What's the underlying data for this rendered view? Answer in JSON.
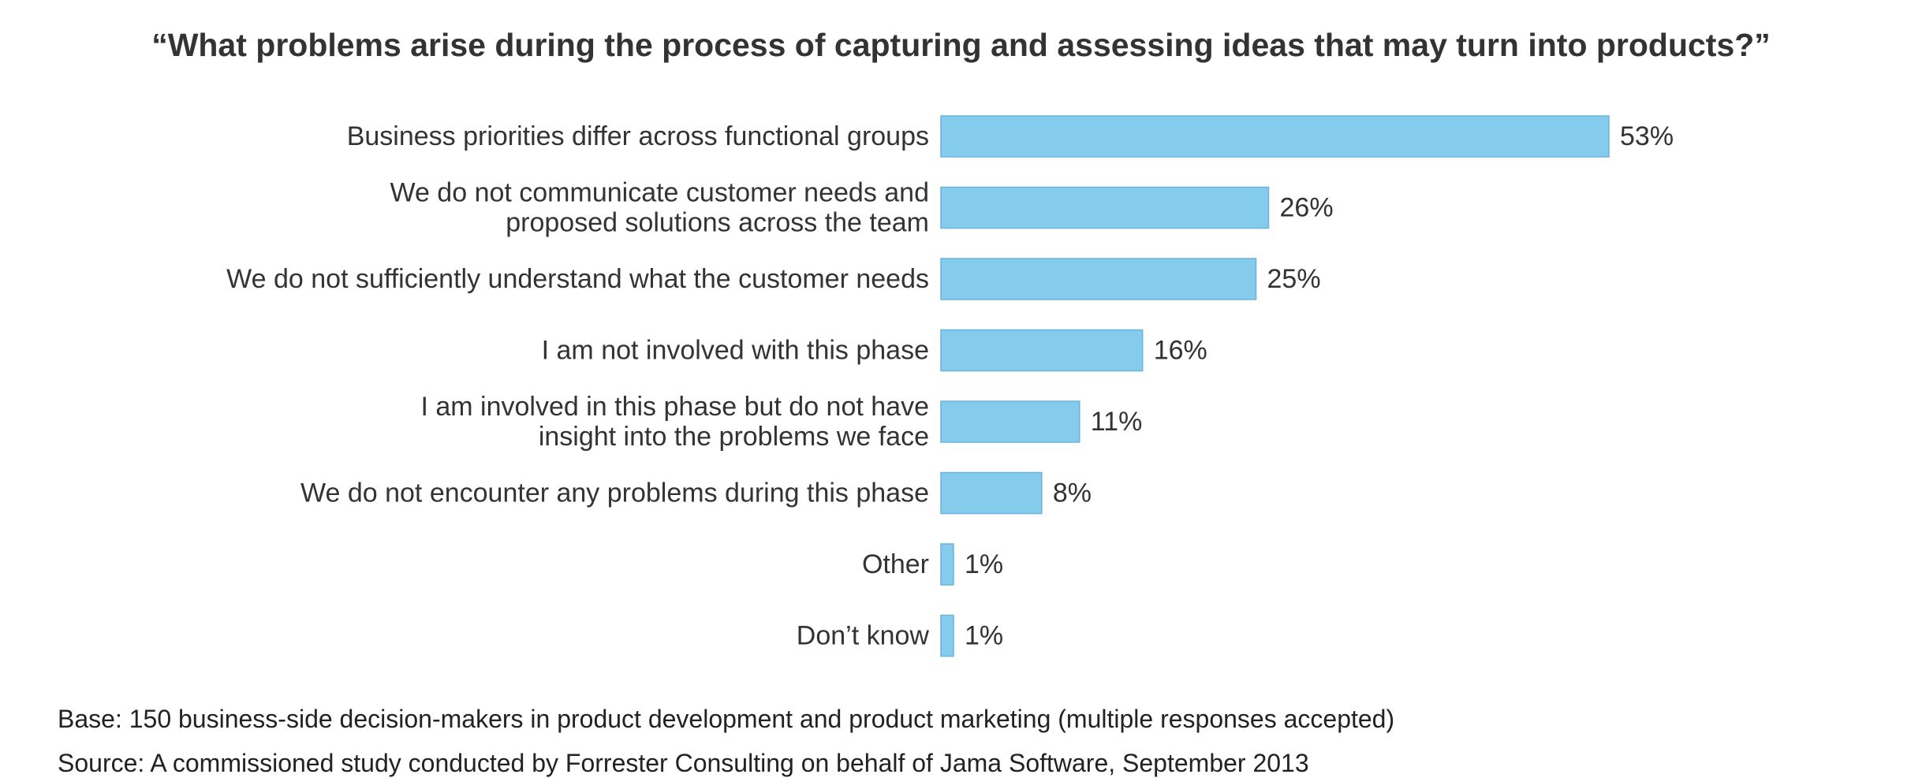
{
  "chart_data": {
    "type": "bar",
    "orientation": "horizontal",
    "title": "“What problems arise during the process of capturing and assessing ideas that may turn into products?”",
    "categories": [
      [
        "Business priorities differ across functional groups"
      ],
      [
        "We do not communicate customer needs and",
        "proposed solutions across the team"
      ],
      [
        "We do not sufficiently understand what the customer needs"
      ],
      [
        "I am not involved with this phase"
      ],
      [
        "I am involved in this phase but do not have",
        "insight into the problems we face"
      ],
      [
        "We do not encounter any problems during this phase"
      ],
      [
        "Other"
      ],
      [
        "Don’t know"
      ]
    ],
    "values": [
      53,
      26,
      25,
      16,
      11,
      8,
      1,
      1
    ],
    "value_labels": [
      "53%",
      "26%",
      "25%",
      "16%",
      "11%",
      "8%",
      "1%",
      "1%"
    ],
    "unit": "%",
    "xlim": [
      0,
      53
    ],
    "grid": false,
    "legend": "none",
    "bar_color": "#85CBEC",
    "bar_edge_color": "#6BB5DA"
  },
  "footnotes": {
    "base": "Base: 150 business-side decision-makers in product development and product marketing (multiple responses accepted)",
    "source": "Source: A commissioned study conducted by Forrester Consulting on behalf of Jama Software, September 2013"
  }
}
